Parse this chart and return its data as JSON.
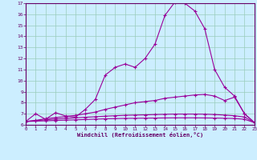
{
  "xlabel": "Windchill (Refroidissement éolien,°C)",
  "bg_color": "#cceeff",
  "line_color": "#990099",
  "grid_color": "#99ccbb",
  "xlim": [
    0,
    23
  ],
  "ylim": [
    6,
    17
  ],
  "xticks": [
    0,
    1,
    2,
    3,
    4,
    5,
    6,
    7,
    8,
    9,
    10,
    11,
    12,
    13,
    14,
    15,
    16,
    17,
    18,
    19,
    20,
    21,
    22,
    23
  ],
  "yticks": [
    6,
    7,
    8,
    9,
    10,
    11,
    12,
    13,
    14,
    15,
    16,
    17
  ],
  "line1_x": [
    0,
    1,
    2,
    3,
    4,
    5,
    6,
    7,
    8,
    9,
    10,
    11,
    12,
    13,
    14,
    15,
    16,
    17,
    18,
    19,
    20,
    21,
    22,
    23
  ],
  "line1_y": [
    6.3,
    7.0,
    6.5,
    7.1,
    6.8,
    6.7,
    7.4,
    8.3,
    10.5,
    11.2,
    11.5,
    11.2,
    12.0,
    13.3,
    15.9,
    17.1,
    17.0,
    16.3,
    14.7,
    11.0,
    9.4,
    8.6,
    7.0,
    6.2
  ],
  "line2_x": [
    0,
    1,
    2,
    3,
    4,
    5,
    6,
    7,
    8,
    9,
    10,
    11,
    12,
    13,
    14,
    15,
    16,
    17,
    18,
    19,
    20,
    21,
    22,
    23
  ],
  "line2_y": [
    6.3,
    6.4,
    6.55,
    6.65,
    6.75,
    6.85,
    7.0,
    7.15,
    7.4,
    7.6,
    7.8,
    8.0,
    8.1,
    8.2,
    8.4,
    8.5,
    8.6,
    8.7,
    8.75,
    8.6,
    8.2,
    8.5,
    7.0,
    6.2
  ],
  "line3_x": [
    0,
    1,
    2,
    3,
    4,
    5,
    6,
    7,
    8,
    9,
    10,
    11,
    12,
    13,
    14,
    15,
    16,
    17,
    18,
    19,
    20,
    21,
    22,
    23
  ],
  "line3_y": [
    6.3,
    6.38,
    6.45,
    6.52,
    6.58,
    6.63,
    6.68,
    6.73,
    6.78,
    6.82,
    6.86,
    6.88,
    6.9,
    6.93,
    6.95,
    6.97,
    6.97,
    6.97,
    6.96,
    6.93,
    6.88,
    6.82,
    6.7,
    6.2
  ],
  "line4_x": [
    0,
    1,
    2,
    3,
    4,
    5,
    6,
    7,
    8,
    9,
    10,
    11,
    12,
    13,
    14,
    15,
    16,
    17,
    18,
    19,
    20,
    21,
    22,
    23
  ],
  "line4_y": [
    6.3,
    6.33,
    6.36,
    6.39,
    6.42,
    6.45,
    6.48,
    6.51,
    6.54,
    6.56,
    6.58,
    6.59,
    6.6,
    6.61,
    6.62,
    6.63,
    6.63,
    6.63,
    6.62,
    6.61,
    6.59,
    6.57,
    6.5,
    6.2
  ]
}
